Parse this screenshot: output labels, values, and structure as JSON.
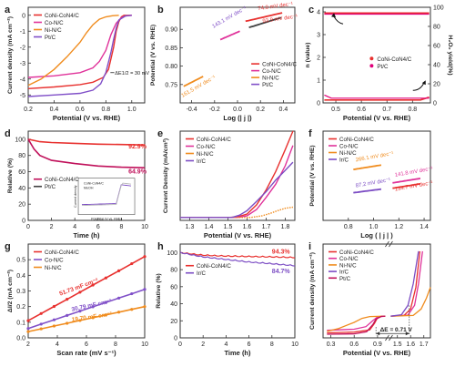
{
  "figure": {
    "legend_names_1": [
      "CoNi-CoN4/C",
      "Co-N/C",
      "Ni-N/C",
      "Pt/C"
    ]
  },
  "colors": {
    "red": "#e8312f",
    "pink": "#e0329a",
    "purple": "#8050c8",
    "orange": "#f08c1e",
    "dark": "#404040",
    "pinkdark": "#e0007a",
    "conic": "#e8312f",
    "pt": "#c0105a",
    "ir": "#7c4dc4"
  },
  "chart_data": [
    {
      "panel": "a",
      "type": "line",
      "xlabel": "Potential (V vs. RHE)",
      "ylabel": "Current density (mA cm⁻²)",
      "xlim": [
        0.2,
        1.1
      ],
      "ylim": [
        -5.5,
        0.5
      ],
      "xticks": [
        "0.2",
        "0.4",
        "0.6",
        "0.8",
        "1.0"
      ],
      "yticks": [
        "0",
        "-1",
        "-2",
        "-3",
        "-4",
        "-5"
      ],
      "annotation": "ΔE1/2 = 30 mV",
      "series": [
        {
          "name": "CoNi-CoN4/C",
          "color": "red",
          "x": [
            0.2,
            0.4,
            0.6,
            0.7,
            0.78,
            0.82,
            0.86,
            0.88,
            0.9,
            0.92,
            0.94,
            1.0
          ],
          "y": [
            -4.6,
            -4.5,
            -4.35,
            -4.2,
            -3.9,
            -3.4,
            -2.0,
            -1.0,
            -0.4,
            -0.1,
            0,
            0
          ]
        },
        {
          "name": "Co-N/C",
          "color": "pink",
          "x": [
            0.2,
            0.4,
            0.6,
            0.7,
            0.75,
            0.8,
            0.84,
            0.88,
            0.92,
            0.95,
            1.0
          ],
          "y": [
            -3.9,
            -3.8,
            -3.6,
            -3.3,
            -2.9,
            -2.2,
            -1.2,
            -0.5,
            -0.15,
            -0.05,
            0
          ]
        },
        {
          "name": "Ni-N/C",
          "color": "orange",
          "x": [
            0.2,
            0.3,
            0.4,
            0.5,
            0.6,
            0.65,
            0.7,
            0.75,
            0.8,
            0.85,
            0.9
          ],
          "y": [
            -4.4,
            -4.0,
            -3.4,
            -2.6,
            -1.7,
            -1.1,
            -0.6,
            -0.25,
            -0.1,
            -0.03,
            0
          ]
        },
        {
          "name": "Pt/C",
          "color": "purple",
          "x": [
            0.2,
            0.4,
            0.6,
            0.7,
            0.76,
            0.8,
            0.84,
            0.86,
            0.88,
            0.9,
            0.95,
            1.0
          ],
          "y": [
            -5.1,
            -5.0,
            -4.9,
            -4.7,
            -4.3,
            -3.6,
            -2.3,
            -1.5,
            -0.8,
            -0.3,
            -0.05,
            0
          ]
        }
      ]
    },
    {
      "panel": "b",
      "type": "line",
      "xlabel": "Log (| j |)",
      "ylabel": "Potential (V vs. RHE)",
      "xlim": [
        -0.5,
        0.5
      ],
      "ylim": [
        0.7,
        0.96
      ],
      "xticks": [
        "-0.4",
        "-0.2",
        "0.0",
        "0.2",
        "0.4"
      ],
      "yticks": [
        "0.90",
        "0.85",
        "0.80",
        "0.75"
      ],
      "legend": [
        "CoNi-CoN4/C",
        "Co-N/C",
        "Ni-N/C",
        "Pt/C"
      ],
      "annotations": [
        "74.0 mV dec⁻¹",
        "93.9 mV dec⁻¹",
        "143.1 mV dec⁻¹",
        "161.5 mV dec⁻¹"
      ],
      "series": [
        {
          "name": "CoNi-CoN4/C",
          "color": "red",
          "x": [
            0.07,
            0.39
          ],
          "y": [
            0.922,
            0.945
          ]
        },
        {
          "name": "Pt/C",
          "color": "dark",
          "x": [
            0.1,
            0.38
          ],
          "y": [
            0.905,
            0.932
          ]
        },
        {
          "name": "Co-N/C",
          "color": "pink",
          "x": [
            -0.15,
            0.02
          ],
          "y": [
            0.872,
            0.895
          ]
        },
        {
          "name": "Ni-N/C",
          "color": "orange",
          "x": [
            -0.47,
            -0.3
          ],
          "y": [
            0.745,
            0.772
          ]
        }
      ]
    },
    {
      "panel": "c",
      "type": "scatter",
      "xlabel": "Potential (V vs. RHE)",
      "ylabel": "n (value)",
      "ylabel_right": "H₂O₂ yield(%)",
      "xlim": [
        0.45,
        0.87
      ],
      "ylim": [
        0,
        4.2
      ],
      "xticks": [
        "0.5",
        "0.6",
        "0.7",
        "0.8"
      ],
      "yticks": [
        "0",
        "1",
        "2",
        "3",
        "4"
      ],
      "yticks_right": [
        "0",
        "20",
        "40",
        "60",
        "80",
        "100"
      ],
      "legend": [
        "CoNi-CoN4/C",
        "Pt/C"
      ],
      "series": [
        {
          "name": "CoNi-CoN4/C n",
          "color": "red",
          "y_const": 3.95
        },
        {
          "name": "Pt/C n",
          "color": "pinkdark",
          "y_const": 3.9
        },
        {
          "name": "CoNi-CoN4/C H2O2",
          "color": "red",
          "y_pct": 3
        },
        {
          "name": "Pt/C H2O2",
          "color": "pinkdark",
          "y_pct": 5
        }
      ]
    },
    {
      "panel": "d",
      "type": "line",
      "xlabel": "Time (h)",
      "ylabel": "Relative (%)",
      "xlim": [
        0,
        10
      ],
      "ylim": [
        0,
        110
      ],
      "xticks": [
        "0",
        "2",
        "4",
        "6",
        "8",
        "10"
      ],
      "yticks": [
        "0",
        "20",
        "40",
        "60",
        "80",
        "100"
      ],
      "legend": [
        "CoNi-CoN4/C",
        "Pt/C"
      ],
      "annotations": [
        "92.9%",
        "64.9%"
      ],
      "inset": {
        "xlabel": "Potential (V vs. RHE)",
        "ylabel": "Current density",
        "legend": [
          "CoNi-CoN4/C",
          "MeOH"
        ]
      },
      "series": [
        {
          "name": "CoNi-CoN4/C",
          "color": "red",
          "x": [
            0,
            1,
            2,
            4,
            6,
            8,
            10
          ],
          "y": [
            100,
            97,
            96,
            95,
            94,
            93.5,
            92.9
          ]
        },
        {
          "name": "Pt/C",
          "color": "pt",
          "x": [
            0,
            0.5,
            1,
            2,
            4,
            6,
            8,
            10
          ],
          "y": [
            100,
            88,
            80,
            74,
            70,
            67,
            65.5,
            64.9
          ]
        }
      ]
    },
    {
      "panel": "e",
      "type": "line",
      "xlabel": "Potential (V vs. RHE)",
      "ylabel": "Current Density (mA/cm²)",
      "xlim": [
        1.25,
        1.85
      ],
      "ylim": [
        -5,
        150
      ],
      "xticks": [
        "1.3",
        "1.4",
        "1.5",
        "1.6",
        "1.7",
        "1.8"
      ],
      "yticks": [],
      "legend": [
        "CoNi-CoN4/C",
        "Co-N/C",
        "Ni-N/C",
        "Ir/C"
      ],
      "series": [
        {
          "name": "CoNi-CoN4/C",
          "color": "red",
          "x": [
            1.25,
            1.5,
            1.55,
            1.6,
            1.65,
            1.7,
            1.75,
            1.8,
            1.84
          ],
          "y": [
            0,
            0,
            1,
            6,
            22,
            48,
            80,
            118,
            150
          ]
        },
        {
          "name": "Co-N/C",
          "color": "pink",
          "x": [
            1.25,
            1.55,
            1.6,
            1.65,
            1.7,
            1.75,
            1.8,
            1.84
          ],
          "y": [
            0,
            0,
            3,
            14,
            35,
            58,
            90,
            125
          ]
        },
        {
          "name": "Ni-N/C",
          "color": "orange",
          "x": [
            1.25,
            1.62,
            1.68,
            1.72,
            1.76,
            1.8,
            1.84
          ],
          "y": [
            0,
            0,
            3,
            7,
            12,
            16,
            18
          ]
        },
        {
          "name": "Ir/C",
          "color": "ir",
          "x": [
            1.25,
            1.52,
            1.56,
            1.6,
            1.65,
            1.7,
            1.75,
            1.8,
            1.84
          ],
          "y": [
            0,
            0,
            4,
            12,
            28,
            45,
            65,
            82,
            96
          ]
        }
      ]
    },
    {
      "panel": "f",
      "type": "line",
      "xlabel": "Log ( | j | )",
      "ylabel": "Potential (V vs. RHE)",
      "xlim": [
        0.6,
        1.45
      ],
      "ylim": [
        0,
        1
      ],
      "xticks": [
        "0.8",
        "1.0",
        "1.2",
        "1.4"
      ],
      "yticks": [],
      "legend": [
        "CoNi-CoN4/C",
        "Co-N/C",
        "Ni-N/C",
        "Ir/C"
      ],
      "annotations": [
        "266.1 mV dec⁻¹",
        "141.8 mV dec⁻¹",
        "134.7 mV dec⁻¹",
        "87.2 mV dec⁻¹"
      ],
      "series": [
        {
          "name": "Ni-N/C",
          "color": "orange",
          "x": [
            0.84,
            1.06
          ],
          "y": [
            0.57,
            0.62
          ]
        },
        {
          "name": "Co-N/C",
          "color": "pink",
          "x": [
            1.15,
            1.37
          ],
          "y": [
            0.42,
            0.47
          ]
        },
        {
          "name": "CoNi-CoN4/C",
          "color": "red",
          "x": [
            1.15,
            1.37
          ],
          "y": [
            0.36,
            0.41
          ]
        },
        {
          "name": "Ir/C",
          "color": "ir",
          "x": [
            0.84,
            1.06
          ],
          "y": [
            0.31,
            0.35
          ]
        }
      ]
    },
    {
      "panel": "g",
      "type": "line",
      "xlabel": "Scan rate (mV s⁻¹)",
      "ylabel": "ΔI/2 (mA cm⁻²)",
      "xlim": [
        2,
        10
      ],
      "ylim": [
        0,
        0.6
      ],
      "xticks": [
        "2",
        "4",
        "6",
        "8",
        "10"
      ],
      "yticks": [
        "0.0",
        "0.1",
        "0.2",
        "0.3",
        "0.4",
        "0.5"
      ],
      "legend": [
        "CoNi-CoN4/C",
        "Co-N/C",
        "Ni-N/C"
      ],
      "annotations": [
        "51.73 mF cm⁻²",
        "30.79 mF cm⁻²",
        "19.70 mF cm⁻²"
      ],
      "series": [
        {
          "name": "CoNi-CoN4/C",
          "color": "red",
          "x": [
            2,
            10
          ],
          "y": [
            0.11,
            0.52
          ]
        },
        {
          "name": "Co-N/C",
          "color": "purple",
          "x": [
            2,
            10
          ],
          "y": [
            0.06,
            0.31
          ]
        },
        {
          "name": "Ni-N/C",
          "color": "orange",
          "x": [
            2,
            10
          ],
          "y": [
            0.04,
            0.2
          ]
        }
      ]
    },
    {
      "panel": "h",
      "type": "line",
      "xlabel": "Time (h)",
      "ylabel": "Relative (%)",
      "xlim": [
        0,
        10
      ],
      "ylim": [
        0,
        110
      ],
      "xticks": [
        "0",
        "2",
        "4",
        "6",
        "8",
        "10"
      ],
      "yticks": [
        "0",
        "20",
        "40",
        "60",
        "80",
        "100"
      ],
      "legend": [
        "CoNi-CoN4/C",
        "Ir/C"
      ],
      "annotations": [
        "94.3%",
        "84.7%"
      ],
      "series": [
        {
          "name": "CoNi-CoN4/C",
          "color": "red",
          "x": [
            0,
            2,
            4,
            6,
            8,
            10
          ],
          "y": [
            100,
            97,
            96,
            95.5,
            95,
            94.3
          ]
        },
        {
          "name": "Ir/C",
          "color": "ir",
          "x": [
            0,
            2,
            4,
            6,
            8,
            10
          ],
          "y": [
            100,
            95,
            92,
            89,
            87,
            84.7
          ]
        }
      ]
    },
    {
      "panel": "i",
      "type": "line",
      "xlabel": "Potential (V vs. RHE)",
      "ylabel": "Current density (mA cm⁻²)",
      "xticks": [
        "0.3",
        "0.6",
        "0.9",
        "1.5",
        "1.6",
        "1.7"
      ],
      "yticks": [],
      "legend": [
        "CoNi-CoN4/C",
        "Co-N/C",
        "Ni-N/C",
        "Ir/C",
        "Pt/C"
      ],
      "annotation": "ΔE = 0.71 V"
    }
  ]
}
